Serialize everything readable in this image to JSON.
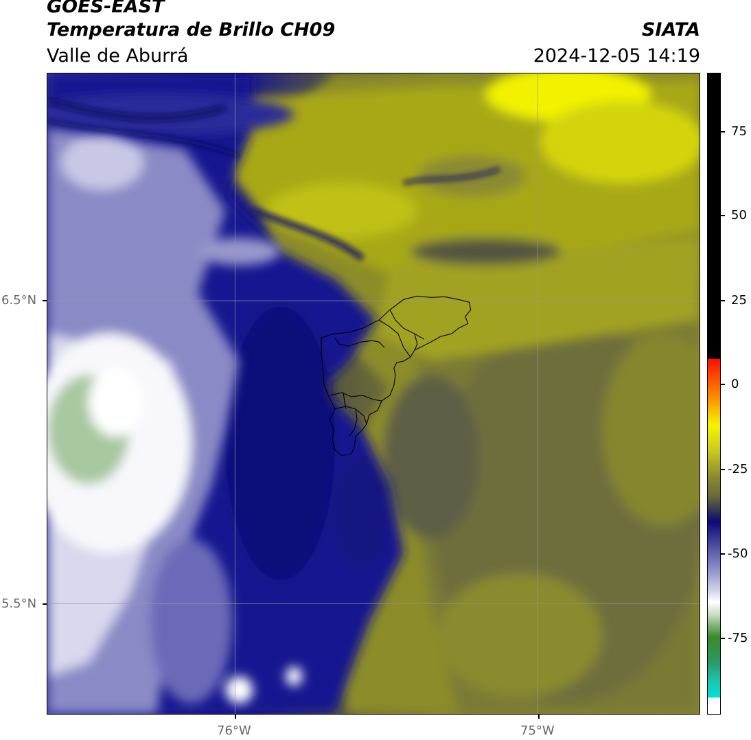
{
  "header": {
    "title_line1": "GOES-EAST",
    "title_line2": "Temperatura de Brillo CH09",
    "subtitle": "Valle de Aburrá",
    "brand": "SIATA",
    "timestamp": "2024-12-05 14:19"
  },
  "map": {
    "lat_labels": [
      "6.5°N",
      "5.5°N"
    ],
    "lon_labels": [
      "76°W",
      "75°W"
    ],
    "region_outline": "Valle de Aburrá municipal boundaries"
  },
  "colorbar": {
    "tick_labels": [
      "75",
      "50",
      "25",
      "0",
      "-25",
      "-50",
      "-75"
    ],
    "colors": {
      "cyan": "#00e0d8",
      "green": "#3a8a2a",
      "white": "#ffffff",
      "lavender": "#9a9ad0",
      "navy": "#0a0a7a",
      "olive": "#6a6a3a",
      "yellow": "#f5f500",
      "orange": "#ff8000",
      "red": "#ff1000",
      "black": "#000000"
    }
  }
}
